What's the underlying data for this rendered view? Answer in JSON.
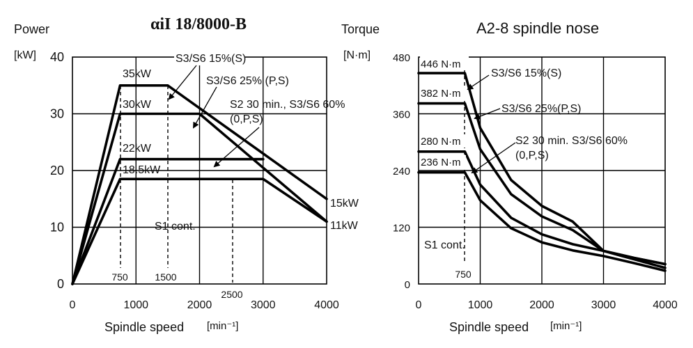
{
  "chart_data": [
    {
      "type": "line",
      "title": "αiI 18/8000-B",
      "ylabel_name": "Power",
      "ylabel_unit": "[kW]",
      "xlabel": "Spindle speed",
      "xlabel_unit": "[min⁻¹]",
      "xlim": [
        0,
        4000
      ],
      "ylim": [
        0,
        40
      ],
      "xticks": [
        "0",
        "1000",
        "2000",
        "3000",
        "4000"
      ],
      "yticks": [
        "0",
        "10",
        "20",
        "30",
        "40"
      ],
      "grid": true,
      "series": [
        {
          "name": "S3/S6 15%(S)",
          "x": [
            0,
            750,
            1500,
            4000
          ],
          "y": [
            0,
            35,
            35,
            15
          ]
        },
        {
          "name": "S3/S6 25% (P,S)",
          "x": [
            0,
            750,
            2000,
            4000
          ],
          "y": [
            0,
            30,
            30,
            11
          ]
        },
        {
          "name": "S2 30 min., S3/S6 60% (0,P,S)",
          "x": [
            0,
            750,
            3000
          ],
          "y": [
            0,
            22,
            22
          ]
        },
        {
          "name": "S1 cont.",
          "x": [
            0,
            750,
            3000,
            4000
          ],
          "y": [
            0,
            18.5,
            18.5,
            11
          ]
        }
      ],
      "value_labels": [
        "35kW",
        "30kW",
        "22kW",
        "18.5kW",
        "15kW",
        "11kW"
      ],
      "speed_markers": [
        "750",
        "1500",
        "2500"
      ],
      "annotations": {
        "s3_15": "S3/S6 15%(S)",
        "s3_25": "S3/S6 25% (P,S)",
        "s2_line1": "S2  30 min.,  S3/S6  60%",
        "s2_line2": "(0,P,S)",
        "s1": "S1 cont."
      }
    },
    {
      "type": "line",
      "title": "A2-8 spindle nose",
      "ylabel_name": "Torque",
      "ylabel_unit": "[N·m]",
      "xlabel": "Spindle speed",
      "xlabel_unit": "[min⁻¹]",
      "xlim": [
        0,
        4000
      ],
      "ylim": [
        0,
        480
      ],
      "xticks": [
        "0",
        "1000",
        "2000",
        "3000",
        "4000"
      ],
      "yticks": [
        "0",
        "120",
        "240",
        "360",
        "480"
      ],
      "grid": true,
      "series": [
        {
          "name": "S3/S6 15%(S)",
          "x": [
            0,
            750,
            1000,
            1500,
            2000,
            2500,
            3000,
            3500,
            4000
          ],
          "y": [
            446,
            446,
            330,
            220,
            165,
            132,
            70,
            55,
            42
          ]
        },
        {
          "name": "S3/S6 25%(P,S)",
          "x": [
            0,
            750,
            1000,
            1500,
            2000,
            2500,
            3000,
            3500,
            4000
          ],
          "y": [
            382,
            382,
            285,
            190,
            143,
            114,
            70,
            55,
            42
          ]
        },
        {
          "name": "S2 30 min.  S3/S6 60% (0,P,S)",
          "x": [
            0,
            750,
            1000,
            1500,
            2000,
            2500,
            3000,
            3500,
            4000
          ],
          "y": [
            280,
            280,
            210,
            140,
            105,
            84,
            70,
            52,
            34
          ]
        },
        {
          "name": "S1 cont.",
          "x": [
            0,
            750,
            1000,
            1500,
            2000,
            2500,
            3000,
            3500,
            4000
          ],
          "y": [
            236,
            236,
            177,
            118,
            88,
            71,
            59,
            44,
            28
          ]
        }
      ],
      "value_labels": [
        "446 N·m",
        "382 N·m",
        "280 N·m",
        "236 N·m"
      ],
      "speed_markers": [
        "750"
      ],
      "annotations": {
        "s3_15": "S3/S6 15%(S)",
        "s3_25": "S3/S6 25%(P,S)",
        "s2_line1": "S2 30 min.  S3/S6 60%",
        "s2_line2": "(0,P,S)",
        "s1": "S1 cont."
      }
    }
  ]
}
